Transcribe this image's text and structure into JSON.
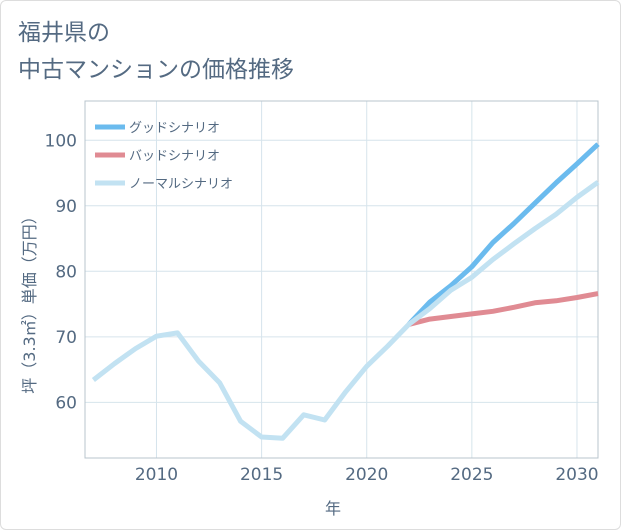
{
  "title": {
    "line1": "福井県の",
    "line2": "中古マンションの価格推移"
  },
  "chart_data": {
    "type": "line",
    "xlabel": "年",
    "ylabel": "坪（3.3㎡）単価（万円）",
    "xlim": [
      2006.6,
      2031
    ],
    "ylim": [
      51.5,
      106
    ],
    "x_ticks": [
      2010,
      2015,
      2020,
      2025,
      2030
    ],
    "y_ticks": [
      60,
      70,
      80,
      90,
      100
    ],
    "grid": true,
    "legend_position": "top-left",
    "series": [
      {
        "name": "グッドシナリオ",
        "color": "#6bbbee",
        "x": [
          2022,
          2023,
          2024,
          2025,
          2026,
          2027,
          2028,
          2029,
          2030,
          2031
        ],
        "values": [
          71.9,
          75.3,
          77.8,
          80.7,
          84.4,
          87.3,
          90.4,
          93.5,
          96.4,
          99.4
        ]
      },
      {
        "name": "バッドシナリオ",
        "color": "#e08b93",
        "x": [
          2022,
          2023,
          2024,
          2025,
          2026,
          2027,
          2028,
          2029,
          2030,
          2031
        ],
        "values": [
          71.9,
          72.7,
          73.1,
          73.5,
          73.9,
          74.5,
          75.2,
          75.5,
          76.0,
          76.6
        ]
      },
      {
        "name": "ノーマルシナリオ",
        "color": "#c2e2f2",
        "x": [
          2007,
          2008,
          2009,
          2010,
          2011,
          2012,
          2013,
          2014,
          2015,
          2016,
          2017,
          2018,
          2019,
          2020,
          2021,
          2022,
          2023,
          2024,
          2025,
          2026,
          2027,
          2028,
          2029,
          2030,
          2031
        ],
        "values": [
          63.4,
          65.9,
          68.2,
          70.1,
          70.6,
          66.3,
          63.0,
          57.1,
          54.7,
          54.5,
          58.1,
          57.3,
          61.6,
          65.5,
          68.6,
          71.9,
          74.3,
          77.1,
          79.1,
          81.8,
          84.2,
          86.5,
          88.7,
          91.3,
          93.6
        ]
      }
    ]
  }
}
